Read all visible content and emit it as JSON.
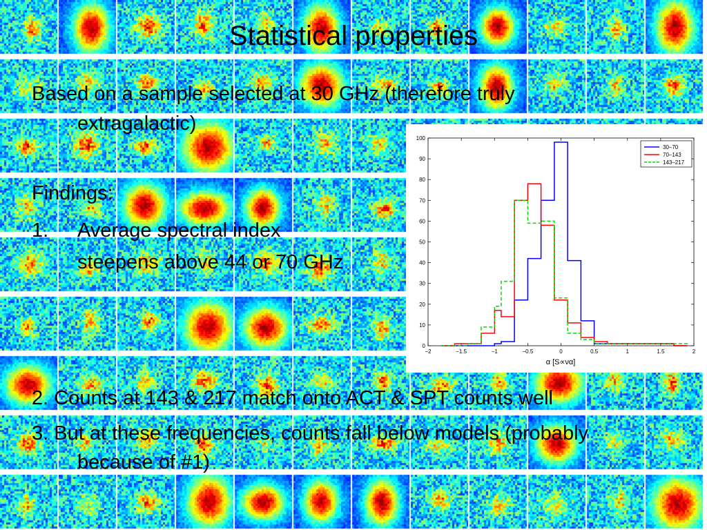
{
  "slide": {
    "title": "Statistical properties",
    "line1a": "Based on a sample selected at 30 GHz (therefore truly",
    "line1b": "extragalactic)",
    "findings": "Findings:",
    "item1_num": "1.",
    "item1_a": "Average spectral index",
    "item1_b": "steepens above 44 or 70 GHz",
    "item2": "2.  Counts at 143 & 217 match onto ACT & SPT counts well",
    "item3a": "3.  But at these frequencies, counts fall below models (probably",
    "item3b": "because of #1)"
  },
  "colors": {
    "series_30_70": "#0000ff",
    "series_70_143": "#ff0000",
    "series_143_217": "#00dd00"
  },
  "chart_data": {
    "type": "line",
    "style": "step-histogram",
    "xlabel": "α [S∝να]",
    "ylabel": "",
    "xlim": [
      -2,
      2
    ],
    "ylim": [
      0,
      100
    ],
    "xticks": [
      -2,
      -1.5,
      -1,
      -0.5,
      0,
      0.5,
      1,
      1.5,
      2
    ],
    "xtick_labels": [
      "−2",
      "−1.5",
      "−1",
      "−0.5",
      "0",
      "0.5",
      "1",
      "1.5",
      "2"
    ],
    "yticks": [
      0,
      10,
      20,
      30,
      40,
      50,
      60,
      70,
      80,
      90,
      100
    ],
    "legend_position": "top-right",
    "bin_edges": [
      -1.8,
      -1.6,
      -1.4,
      -1.2,
      -1.0,
      -0.9,
      -0.7,
      -0.5,
      -0.3,
      -0.1,
      0.1,
      0.3,
      0.5,
      0.7,
      0.9,
      1.1,
      1.3,
      1.5,
      1.7,
      1.9
    ],
    "series": [
      {
        "name": "30–70",
        "color": "#0000ff",
        "dash": "solid",
        "values": [
          0,
          0,
          0,
          0,
          1,
          2,
          22,
          42,
          70,
          98,
          41,
          12,
          1,
          1,
          1,
          1,
          1,
          1,
          0
        ]
      },
      {
        "name": "70–143",
        "color": "#ff0000",
        "dash": "solid",
        "values": [
          0,
          1,
          1,
          6,
          17,
          14,
          70,
          78,
          58,
          22,
          11,
          4,
          2,
          1,
          1,
          1,
          1,
          1,
          0
        ]
      },
      {
        "name": "143–217",
        "color": "#00dd00",
        "dash": "dashed",
        "values": [
          0,
          0,
          1,
          9,
          19,
          31,
          70,
          59,
          60,
          23,
          6,
          3,
          1,
          1,
          1,
          1,
          1,
          1,
          1
        ]
      }
    ]
  }
}
